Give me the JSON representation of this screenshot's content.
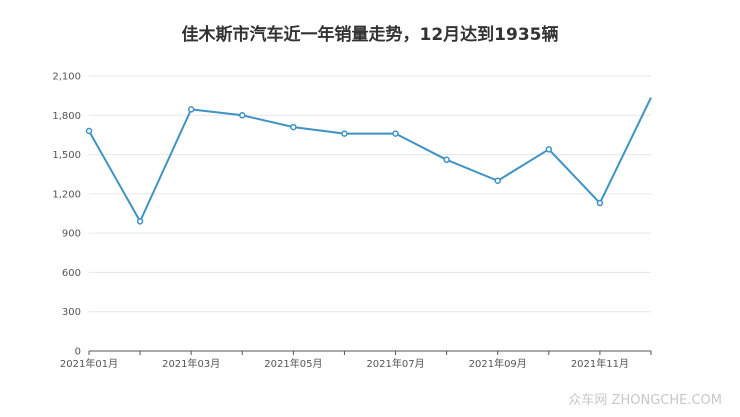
{
  "chart_data": {
    "type": "line",
    "title": "佳木斯市汽车近一年销量走势，12月达到1935辆",
    "xlabel": "",
    "ylabel": "",
    "x": [
      "2021年01月",
      "2021年02月",
      "2021年03月",
      "2021年04月",
      "2021年05月",
      "2021年06月",
      "2021年07月",
      "2021年08月",
      "2021年09月",
      "2021年10月",
      "2021年11月",
      "2021年12月"
    ],
    "x_tick_labels": [
      "2021年01月",
      "2021年03月",
      "2021年05月",
      "2021年07月",
      "2021年09月",
      "2021年11月"
    ],
    "y_ticks": [
      "0",
      "300",
      "600",
      "900",
      "1,200",
      "1,500",
      "1,800",
      "2,100"
    ],
    "ylim": [
      0,
      2100
    ],
    "grid": true,
    "series": [
      {
        "values": [
          1680,
          990,
          1845,
          1800,
          1710,
          1660,
          1660,
          1460,
          1300,
          1540,
          1130,
          1935
        ]
      }
    ],
    "colors": {
      "line": "#3e93c4",
      "grid": "#e6e6e6",
      "axis": "#555555"
    }
  },
  "watermark": "众车网 ZHONGCHE.COM"
}
